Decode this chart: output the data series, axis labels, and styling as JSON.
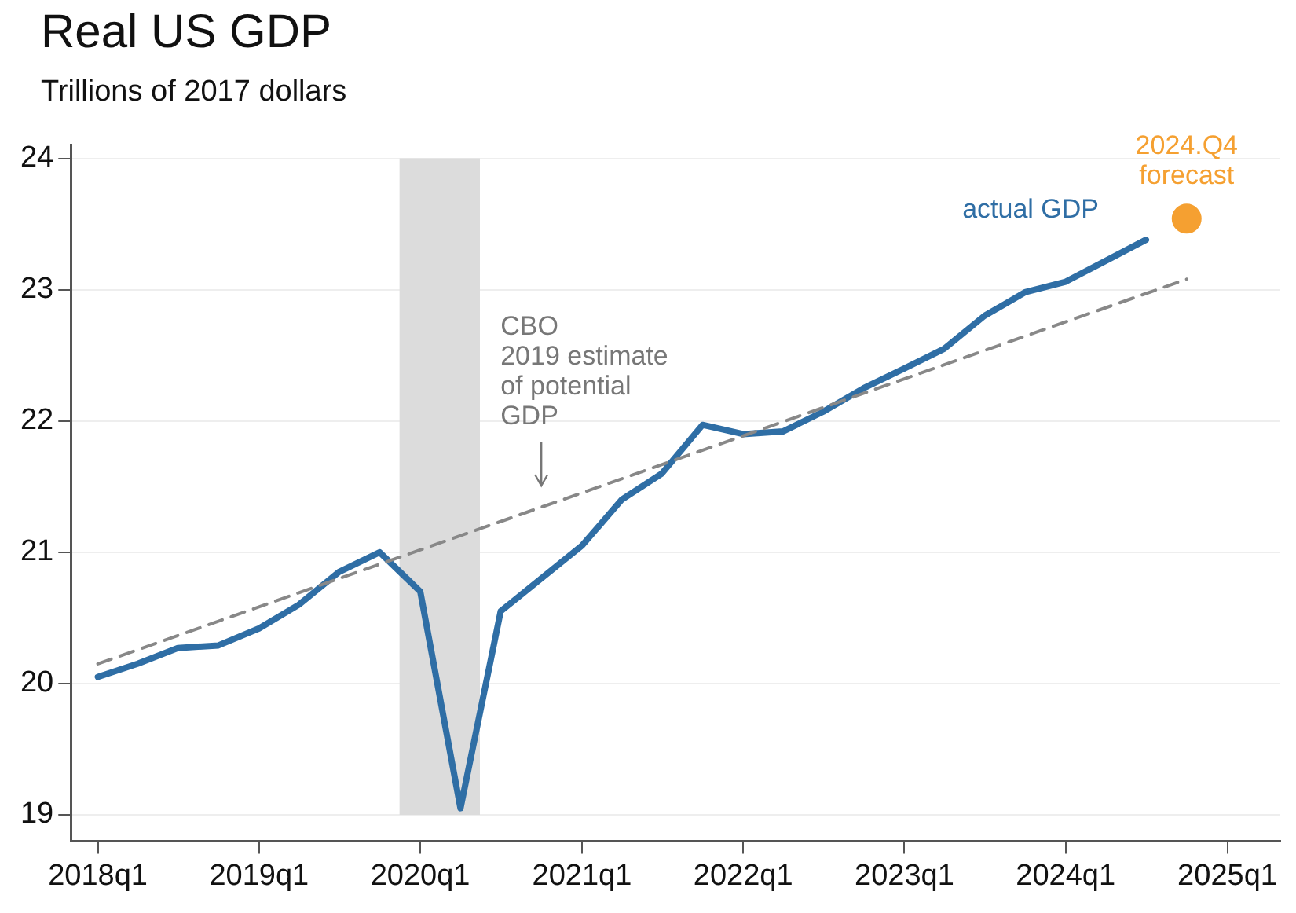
{
  "chart_data": {
    "type": "line",
    "title": "Real US GDP",
    "subtitle": "Trillions of 2017 dollars",
    "xlim": [
      "2017-11",
      "2025-05"
    ],
    "xticks": [
      {
        "value": "2018-01",
        "label": "2018q1"
      },
      {
        "value": "2019-01",
        "label": "2019q1"
      },
      {
        "value": "2020-01",
        "label": "2020q1"
      },
      {
        "value": "2021-01",
        "label": "2021q1"
      },
      {
        "value": "2022-01",
        "label": "2022q1"
      },
      {
        "value": "2023-01",
        "label": "2023q1"
      },
      {
        "value": "2024-01",
        "label": "2024q1"
      },
      {
        "value": "2025-01",
        "label": "2025q1"
      }
    ],
    "ylim": [
      18.8,
      24.1
    ],
    "yticks": [
      19,
      20,
      21,
      22,
      23,
      24
    ],
    "grid": "y",
    "legend": false,
    "bands": [
      {
        "axis": "x",
        "from": "2019-11-15",
        "to": "2020-05-15",
        "color": "#dcdcdc"
      }
    ],
    "series": [
      {
        "type": "line",
        "color": "#888888",
        "line_style": "dashed",
        "x": [
          "2018-01",
          "2024-10"
        ],
        "values": [
          20.15,
          23.08
        ]
      },
      {
        "type": "line",
        "name": "actual GDP",
        "color": "#2f6ea5",
        "line_style": "solid",
        "x": [
          "2018-01",
          "2018-04",
          "2018-07",
          "2018-10",
          "2019-01",
          "2019-04",
          "2019-07",
          "2019-10",
          "2020-01",
          "2020-04",
          "2020-07",
          "2020-10",
          "2021-01",
          "2021-04",
          "2021-07",
          "2021-10",
          "2022-01",
          "2022-04",
          "2022-07",
          "2022-10",
          "2023-01",
          "2023-04",
          "2023-07",
          "2023-10",
          "2024-01",
          "2024-04",
          "2024-07"
        ],
        "values": [
          20.05,
          20.15,
          20.27,
          20.29,
          20.42,
          20.6,
          20.85,
          21.0,
          20.7,
          19.05,
          20.55,
          20.8,
          21.05,
          21.4,
          21.6,
          21.97,
          21.9,
          21.92,
          22.07,
          22.25,
          22.4,
          22.55,
          22.8,
          22.98,
          23.06,
          23.22,
          23.38
        ]
      },
      {
        "type": "scatter",
        "name": "2024.Q4\nforecast",
        "color": "#f5a031",
        "marker": "circle",
        "x": [
          "2024-10"
        ],
        "values": [
          23.54
        ]
      }
    ],
    "annotations": [
      {
        "text": "CBO\n2019 estimate\nof potential\nGDP",
        "x": "2020-10",
        "y": 21.34
      }
    ]
  }
}
